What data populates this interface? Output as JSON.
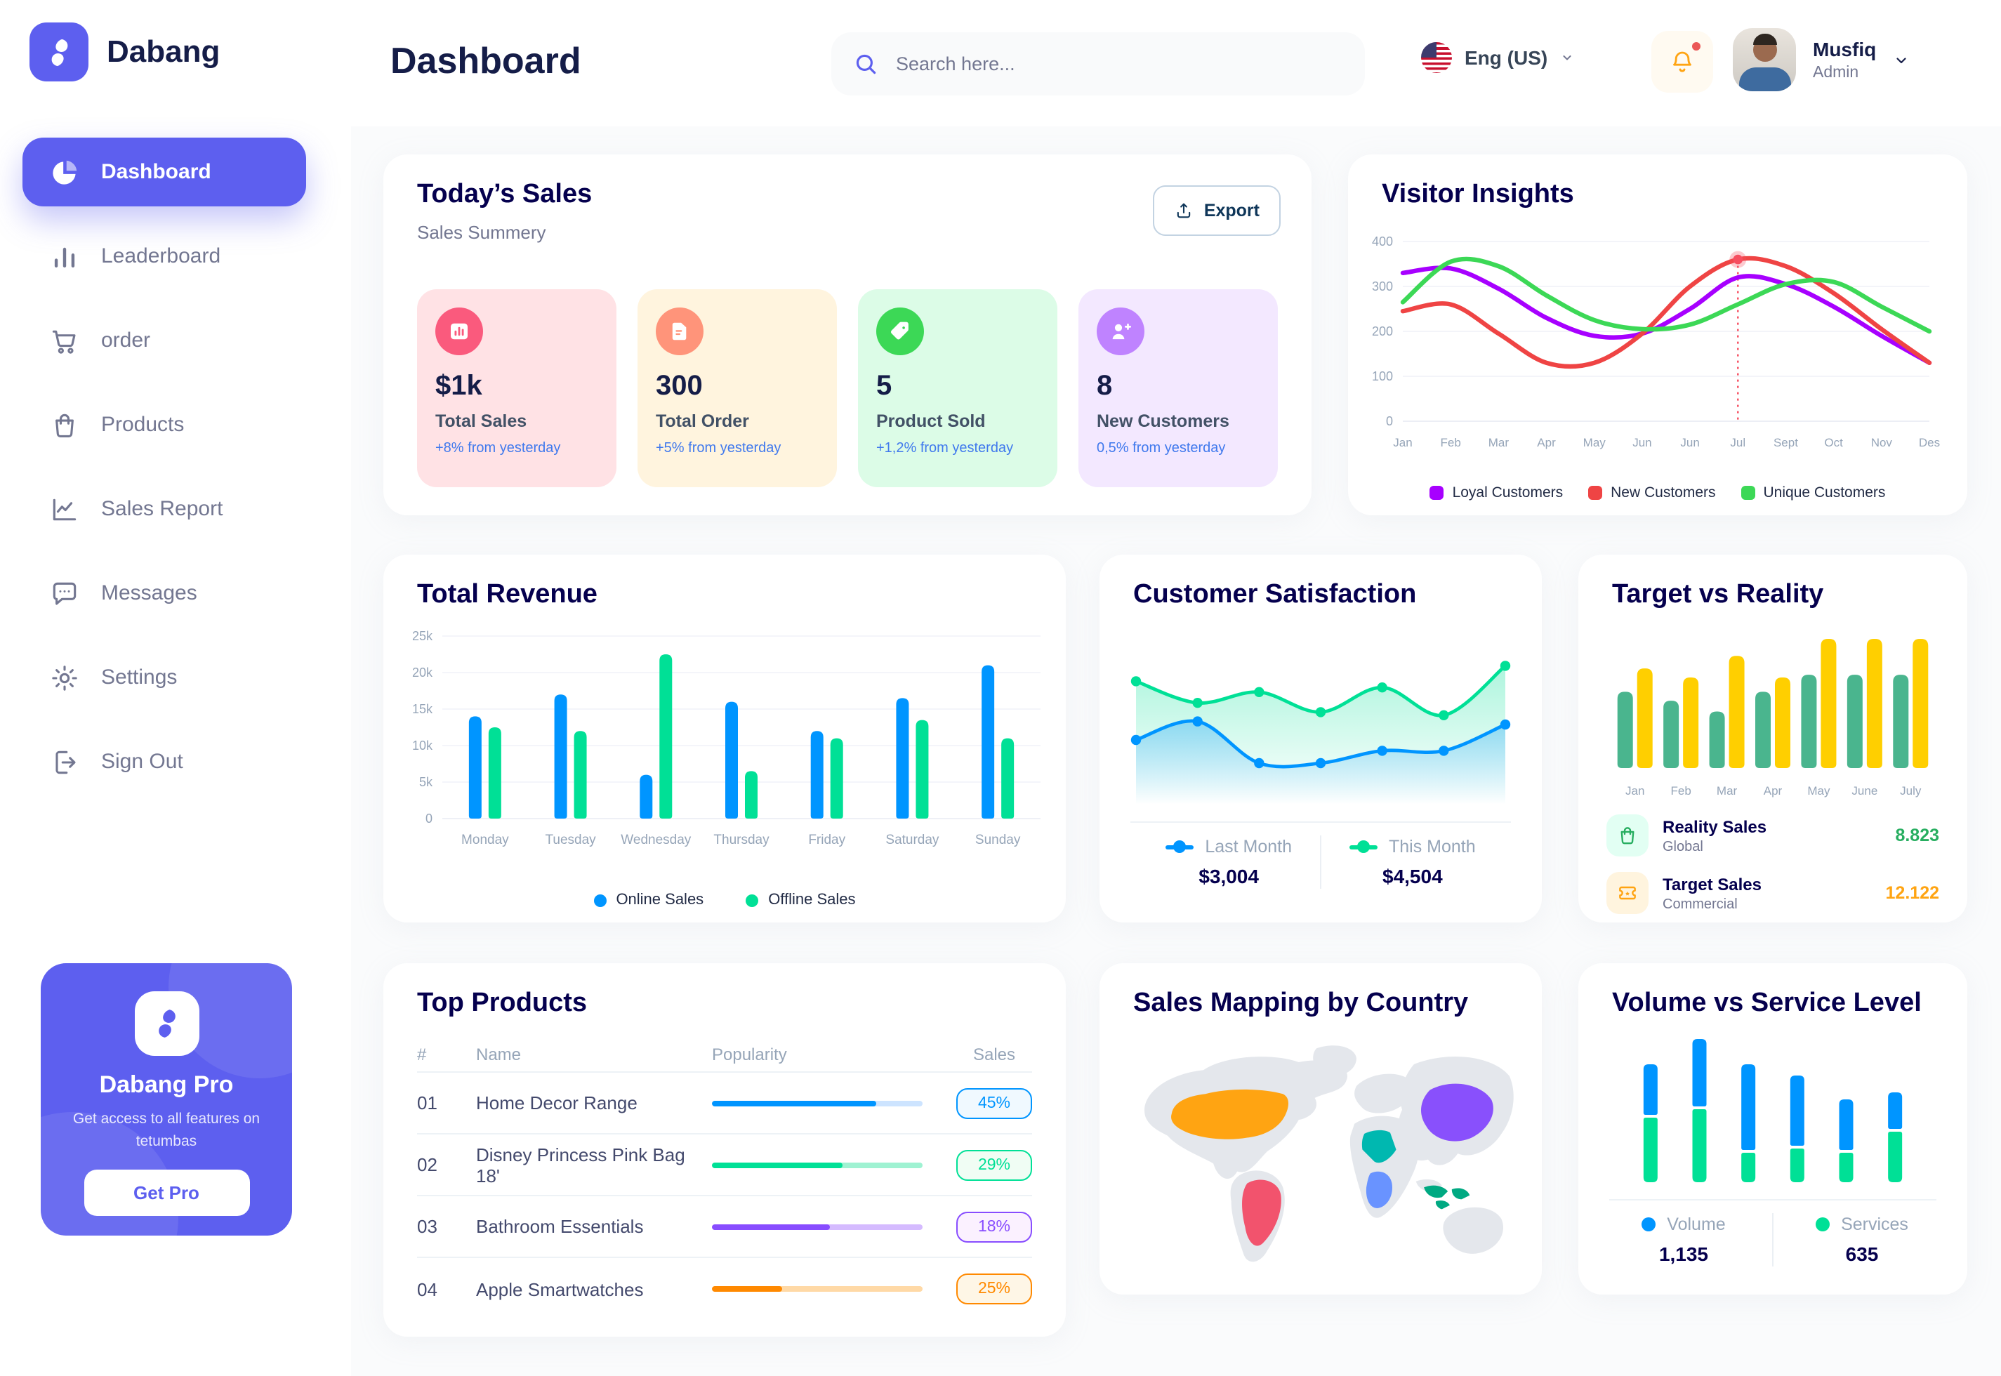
{
  "brand": {
    "name": "Dabang"
  },
  "sidebar": {
    "items": [
      {
        "label": "Dashboard",
        "icon": "pie-chart",
        "active": true
      },
      {
        "label": "Leaderboard",
        "icon": "bar-chart",
        "active": false
      },
      {
        "label": "order",
        "icon": "cart",
        "active": false
      },
      {
        "label": "Products",
        "icon": "bag",
        "active": false
      },
      {
        "label": "Sales Report",
        "icon": "line-chart",
        "active": false
      },
      {
        "label": "Messages",
        "icon": "message",
        "active": false
      },
      {
        "label": "Settings",
        "icon": "gear",
        "active": false
      },
      {
        "label": "Sign Out",
        "icon": "sign-out",
        "active": false
      }
    ],
    "pro_card": {
      "title": "Dabang Pro",
      "subtitle": "Get access to all features on tetumbas",
      "button_label": "Get Pro"
    }
  },
  "header": {
    "title": "Dashboard",
    "search_placeholder": "Search here...",
    "language": "Eng (US)",
    "notifications_dot": true,
    "user": {
      "name": "Musfiq",
      "role": "Admin"
    }
  },
  "today_sales": {
    "title": "Today’s Sales",
    "subtitle": "Sales Summery",
    "export_label": "Export",
    "delta_color": "#4079ED",
    "cards": [
      {
        "value": "$1k",
        "label": "Total Sales",
        "delta": "+8% from yesterday",
        "bg": "#FFE2E5",
        "circle": "#FA5A7D",
        "icon": "chart-bars-icon"
      },
      {
        "value": "300",
        "label": "Total Order",
        "delta": "+5% from yesterday",
        "bg": "#FFF4DE",
        "circle": "#FF947A",
        "icon": "order-note-icon"
      },
      {
        "value": "5",
        "label": "Product Sold",
        "delta": "+1,2% from yesterday",
        "bg": "#DCFCE7",
        "circle": "#3CD856",
        "icon": "tag-icon"
      },
      {
        "value": "8",
        "label": "New Customers",
        "delta": "0,5% from yesterday",
        "bg": "#F3E8FF",
        "circle": "#BF83FF",
        "icon": "user-plus-icon"
      }
    ]
  },
  "chart_data": [
    {
      "id": "visitor_insights",
      "type": "line",
      "title": "Visitor Insights",
      "x": [
        "Jan",
        "Feb",
        "Mar",
        "Apr",
        "May",
        "Jun",
        "Jun",
        "Jul",
        "Sept",
        "Oct",
        "Nov",
        "Des"
      ],
      "ylim": [
        0,
        400
      ],
      "yticks": [
        0,
        100,
        200,
        300,
        400
      ],
      "grid": true,
      "legend_position": "bottom",
      "series": [
        {
          "name": "Loyal Customers",
          "color": "#A700FF",
          "values": [
            330,
            340,
            295,
            230,
            190,
            195,
            250,
            320,
            305,
            255,
            190,
            130
          ]
        },
        {
          "name": "New Customers",
          "color": "#EF4444",
          "values": [
            245,
            260,
            195,
            130,
            130,
            195,
            300,
            360,
            345,
            285,
            205,
            130
          ]
        },
        {
          "name": "Unique Customers",
          "color": "#3CD856",
          "values": [
            265,
            355,
            345,
            280,
            225,
            205,
            215,
            260,
            305,
            310,
            255,
            200
          ]
        }
      ],
      "highlight": {
        "series": "New Customers",
        "x_index": 7,
        "x_label": "Jul",
        "value": 360
      }
    },
    {
      "id": "total_revenue",
      "type": "bar",
      "title": "Total Revenue",
      "categories": [
        "Monday",
        "Tuesday",
        "Wednesday",
        "Thursday",
        "Friday",
        "Saturday",
        "Sunday"
      ],
      "ylim": [
        0,
        25000
      ],
      "ytick_labels": [
        "0",
        "5k",
        "10k",
        "15k",
        "20k",
        "25k"
      ],
      "legend_position": "bottom",
      "series": [
        {
          "name": "Online Sales",
          "color": "#0095FF",
          "values": [
            14000,
            17000,
            6000,
            16000,
            12000,
            16500,
            21000
          ]
        },
        {
          "name": "Offline Sales",
          "color": "#00E096",
          "values": [
            12500,
            12000,
            22500,
            6500,
            11000,
            13500,
            11000
          ]
        }
      ]
    },
    {
      "id": "customer_satisfaction",
      "type": "area",
      "title": "Customer Satisfaction",
      "ylim": [
        0,
        100
      ],
      "legend_position": "bottom",
      "series": [
        {
          "name": "Last Month",
          "color": "#0095FF",
          "total": "$3,004",
          "values": [
            40,
            52,
            25,
            25,
            33,
            33,
            50
          ]
        },
        {
          "name": "This Month",
          "color": "#00E096",
          "total": "$4,504",
          "values": [
            78,
            64,
            71,
            58,
            74,
            56,
            88
          ]
        }
      ]
    },
    {
      "id": "target_vs_reality",
      "type": "bar",
      "title": "Target vs Reality",
      "categories": [
        "Jan",
        "Feb",
        "Mar",
        "Apr",
        "May",
        "June",
        "July"
      ],
      "series": [
        {
          "name": "Reality Sales",
          "color": "#4AB58E",
          "values": [
            8.5,
            7.5,
            6.3,
            8.5,
            10.4,
            10.4,
            10.4
          ]
        },
        {
          "name": "Target Sales",
          "color": "#FFCF00",
          "values": [
            11.1,
            10.1,
            12.5,
            10.1,
            14.4,
            14.4,
            14.4
          ]
        }
      ],
      "legend": [
        {
          "name": "Reality Sales",
          "sub": "Global",
          "value": "8.823",
          "value_color": "#27AE60",
          "icon": "bag-icon",
          "icon_bg": "#E2FFF3",
          "icon_color": "#27AE60"
        },
        {
          "name": "Target Sales",
          "sub": "Commercial",
          "value": "12.122",
          "value_color": "#FFA412",
          "icon": "ticket-icon",
          "icon_bg": "#FFF4DE",
          "icon_color": "#FFA412"
        }
      ]
    },
    {
      "id": "volume_vs_service",
      "type": "stacked-bar",
      "title": "Volume vs Service Level",
      "legend_position": "bottom",
      "series": [
        {
          "name": "Volume",
          "color": "#0095FF",
          "total": "1,135",
          "values": [
            36,
            48,
            61,
            50,
            36,
            26
          ]
        },
        {
          "name": "Services",
          "color": "#00E096",
          "total": "635",
          "values": [
            46,
            52,
            21,
            24,
            21,
            36
          ]
        }
      ]
    }
  ],
  "top_products": {
    "title": "Top Products",
    "columns": [
      "#",
      "Name",
      "Popularity",
      "Sales"
    ],
    "rows": [
      {
        "num": "01",
        "name": "Home Decor Range",
        "popularity": 78,
        "sales": "45%",
        "color": "#0095FF",
        "track": "#CDE4FF",
        "badge_bg": "#F0F9FF"
      },
      {
        "num": "02",
        "name": "Disney Princess Pink Bag 18'",
        "popularity": 62,
        "sales": "29%",
        "color": "#00E096",
        "track": "#9FF2D2",
        "badge_bg": "#F0FDF4"
      },
      {
        "num": "03",
        "name": "Bathroom Essentials",
        "popularity": 56,
        "sales": "18%",
        "color": "#884DFF",
        "track": "#D5BBFF",
        "badge_bg": "#FBF1FF"
      },
      {
        "num": "04",
        "name": "Apple Smartwatches",
        "popularity": 33,
        "sales": "25%",
        "color": "#FF8900",
        "track": "#FFD9A6",
        "badge_bg": "#FEF6E6"
      }
    ]
  },
  "sales_mapping": {
    "title": "Sales Mapping by Country",
    "countries": [
      {
        "id": "usa",
        "name": "United States",
        "color": "#FFA412"
      },
      {
        "id": "brazil",
        "name": "Brazil",
        "color": "#F2536D"
      },
      {
        "id": "china",
        "name": "China",
        "color": "#8950FC"
      },
      {
        "id": "saudi",
        "name": "Saudi Arabia",
        "color": "#00B8B0"
      },
      {
        "id": "congo",
        "name": "DR Congo",
        "color": "#6993FF"
      },
      {
        "id": "indonesia",
        "name": "Indonesia",
        "color": "#00A982"
      }
    ]
  }
}
